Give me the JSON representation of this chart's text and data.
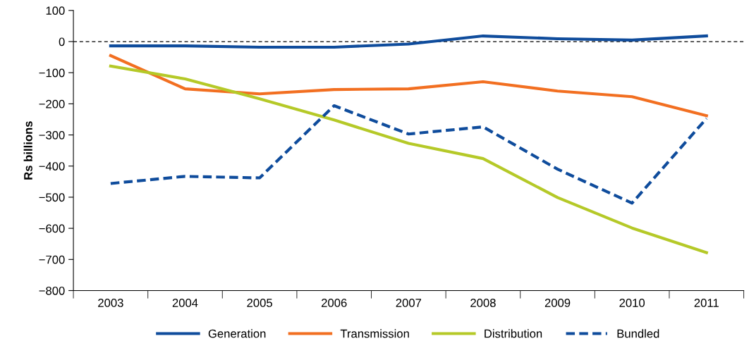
{
  "chart_data": {
    "type": "line",
    "ylabel": "Rs billions",
    "categories": [
      "2003",
      "2004",
      "2005",
      "2006",
      "2007",
      "2008",
      "2009",
      "2010",
      "2011"
    ],
    "series": [
      {
        "name": "Generation",
        "color": "#0f4c9c",
        "values": [
          -14,
          -14,
          -18,
          -18,
          -8,
          18,
          9,
          5,
          18
        ]
      },
      {
        "name": "Transmission",
        "color": "#f26f21",
        "values": [
          -45,
          -152,
          -168,
          -154,
          -152,
          -129,
          -159,
          -177,
          -238
        ]
      },
      {
        "name": "Distribution",
        "color": "#b5c928",
        "values": [
          -79,
          -120,
          -184,
          -252,
          -327,
          -376,
          -501,
          -599,
          -678
        ]
      },
      {
        "name": "Bundled",
        "color": "#0f4c9c",
        "line_style": "dashed",
        "values": [
          -456,
          -433,
          -438,
          -206,
          -297,
          -274,
          -410,
          -519,
          -247
        ]
      }
    ],
    "ylim": [
      -800,
      100
    ],
    "yticks": [
      -800,
      -700,
      -600,
      -500,
      -400,
      -300,
      -200,
      -100,
      0,
      100
    ],
    "ref_lines": [
      {
        "axis": "y",
        "value": 0,
        "label": null,
        "color": "#000000",
        "line_style": "dashed"
      }
    ],
    "grid": false,
    "legend": "bottom",
    "line_style": "solid",
    "marker": "none"
  }
}
